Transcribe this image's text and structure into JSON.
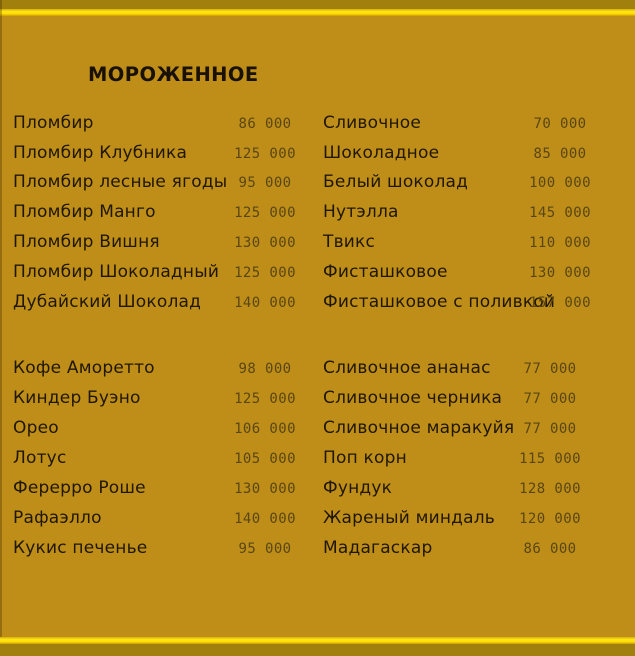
{
  "menu": {
    "title": "МОРОЖЕННОЕ",
    "sections": [
      {
        "left": [
          {
            "name": "Пломбир",
            "price": "86 000"
          },
          {
            "name": "Пломбир Клубника",
            "price": "125 000"
          },
          {
            "name": "Пломбир лесные ягоды",
            "price": "95 000"
          },
          {
            "name": "Пломбир Манго",
            "price": "125 000"
          },
          {
            "name": "Пломбир Вишня",
            "price": "130 000"
          },
          {
            "name": "Пломбир Шоколадный",
            "price": "125 000"
          },
          {
            "name": "Дубайский Шоколад",
            "price": "140 000"
          }
        ],
        "right": [
          {
            "name": "Сливочное",
            "price": "70 000"
          },
          {
            "name": "Шоколадное",
            "price": "85 000"
          },
          {
            "name": "Белый шоколад",
            "price": "100 000"
          },
          {
            "name": "Нутэлла",
            "price": "145 000"
          },
          {
            "name": "Твикс",
            "price": "110 000"
          },
          {
            "name": "Фисташковое",
            "price": "130 000"
          },
          {
            "name": "Фисташковое с поливкой",
            "price": "157 000"
          }
        ]
      },
      {
        "left": [
          {
            "name": "Кофе Аморетто",
            "price": "98 000"
          },
          {
            "name": "Киндер Буэно",
            "price": "125 000"
          },
          {
            "name": "Орео",
            "price": "106 000"
          },
          {
            "name": "Лотус",
            "price": "105 000"
          },
          {
            "name": "Ферерро Роше",
            "price": "130 000"
          },
          {
            "name": "Рафаэлло",
            "price": "140 000"
          },
          {
            "name": "Кукис печенье",
            "price": "95 000"
          }
        ],
        "right": [
          {
            "name": "Сливочное ананас",
            "price": "77 000"
          },
          {
            "name": "Сливочное черника",
            "price": "77 000"
          },
          {
            "name": "Сливочное маракуйя",
            "price": "77 000"
          },
          {
            "name": "Поп корн",
            "price": "115 000"
          },
          {
            "name": "Фундук",
            "price": "128 000"
          },
          {
            "name": "Жареный миндаль",
            "price": "120 000"
          },
          {
            "name": "Мадагаскар",
            "price": "86 000"
          }
        ]
      }
    ]
  },
  "theme": {
    "background": "#be8e19",
    "edge_band": "#a2800e",
    "stripe": "#ffdd00",
    "item_text": "#1f1604",
    "price_text": "#5a4614"
  }
}
